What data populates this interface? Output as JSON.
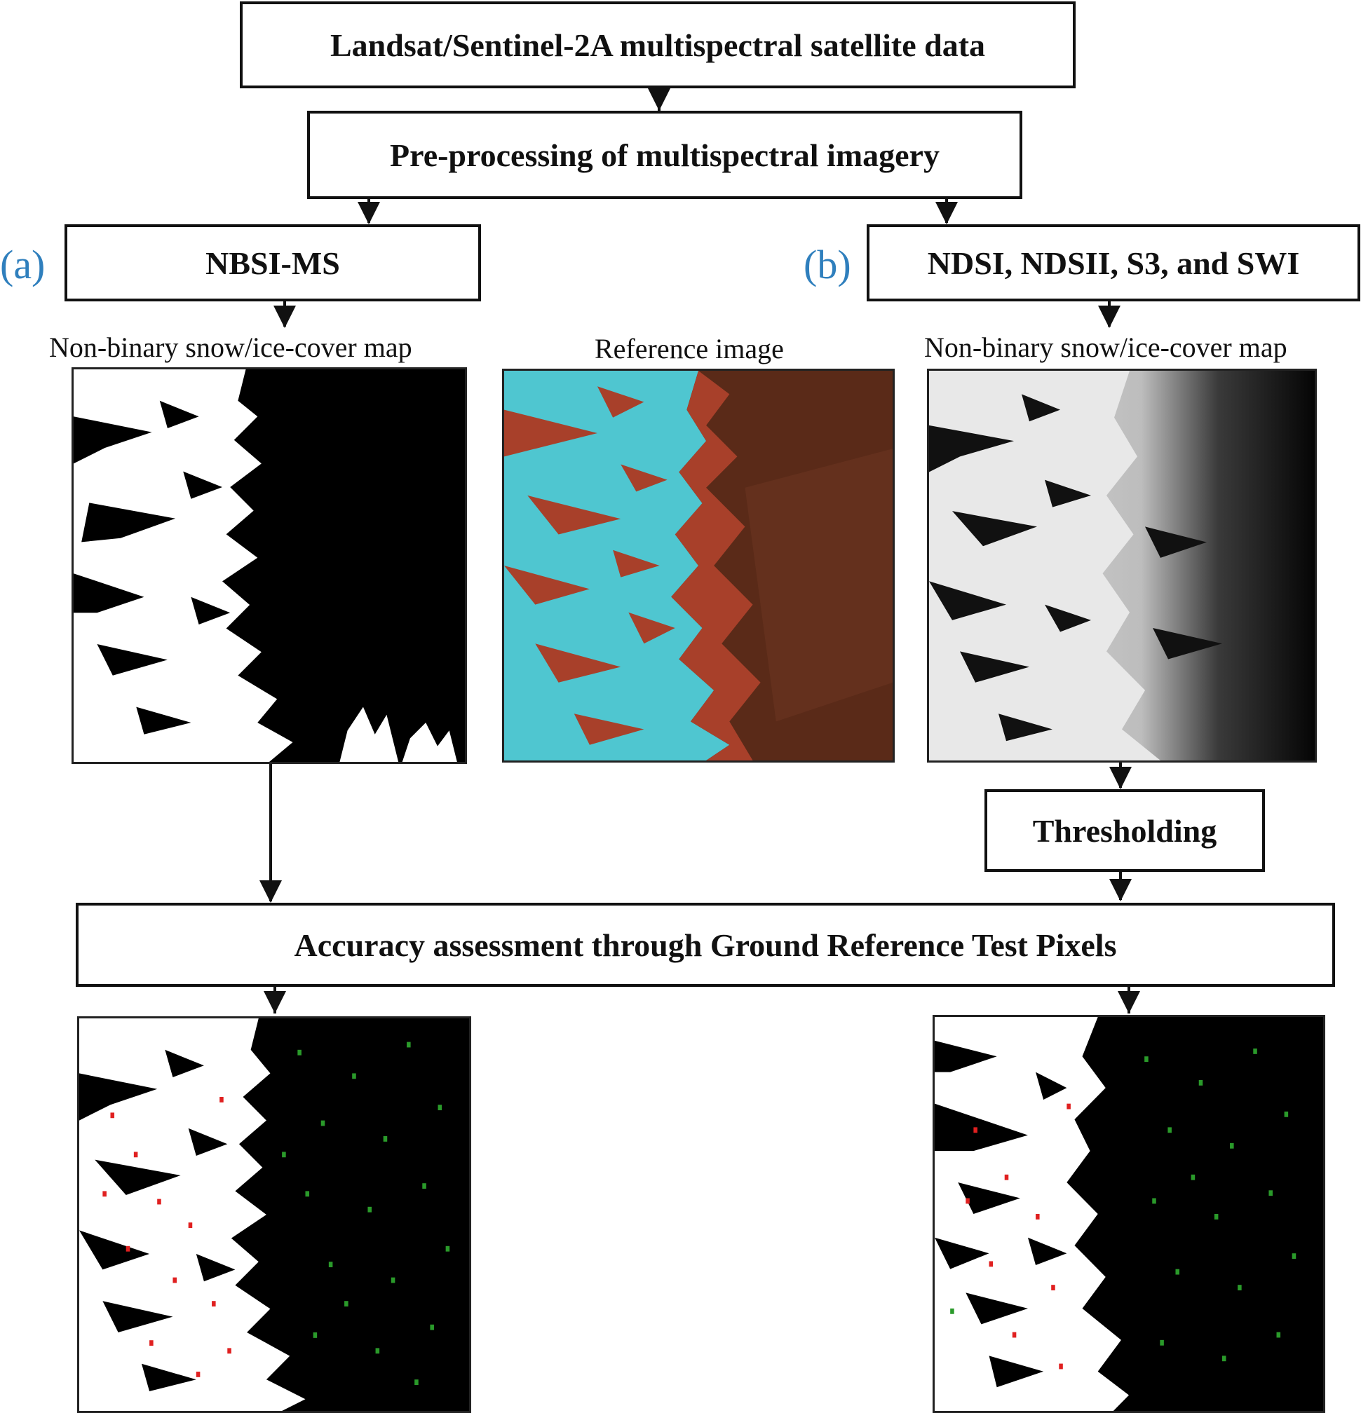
{
  "boxes": {
    "data_source": "Landsat/Sentinel-2A multispectral satellite data",
    "preprocessing": "Pre-processing of multispectral imagery",
    "method_a": "NBSI-MS",
    "method_b": "NDSI, NDSII, S3, and SWI",
    "thresholding": "Thresholding",
    "accuracy": "Accuracy assessment through Ground Reference Test Pixels"
  },
  "tags": {
    "a": "(a)",
    "b": "(b)"
  },
  "captions": {
    "map_a": "Non-binary snow/ice-cover map",
    "reference": "Reference image",
    "map_b": "Non-binary snow/ice-cover map"
  },
  "colors": {
    "border": "#111111",
    "tag": "#2f7fbd",
    "snow": "#ffffff",
    "background_map": "#000000",
    "reference_snow": "#4fc6d0",
    "reference_rock": "#a8402a",
    "reference_plain": "#5a2a18",
    "test_pixel_snow": "#e02020",
    "test_pixel_nonsnow": "#2a9a2a"
  }
}
